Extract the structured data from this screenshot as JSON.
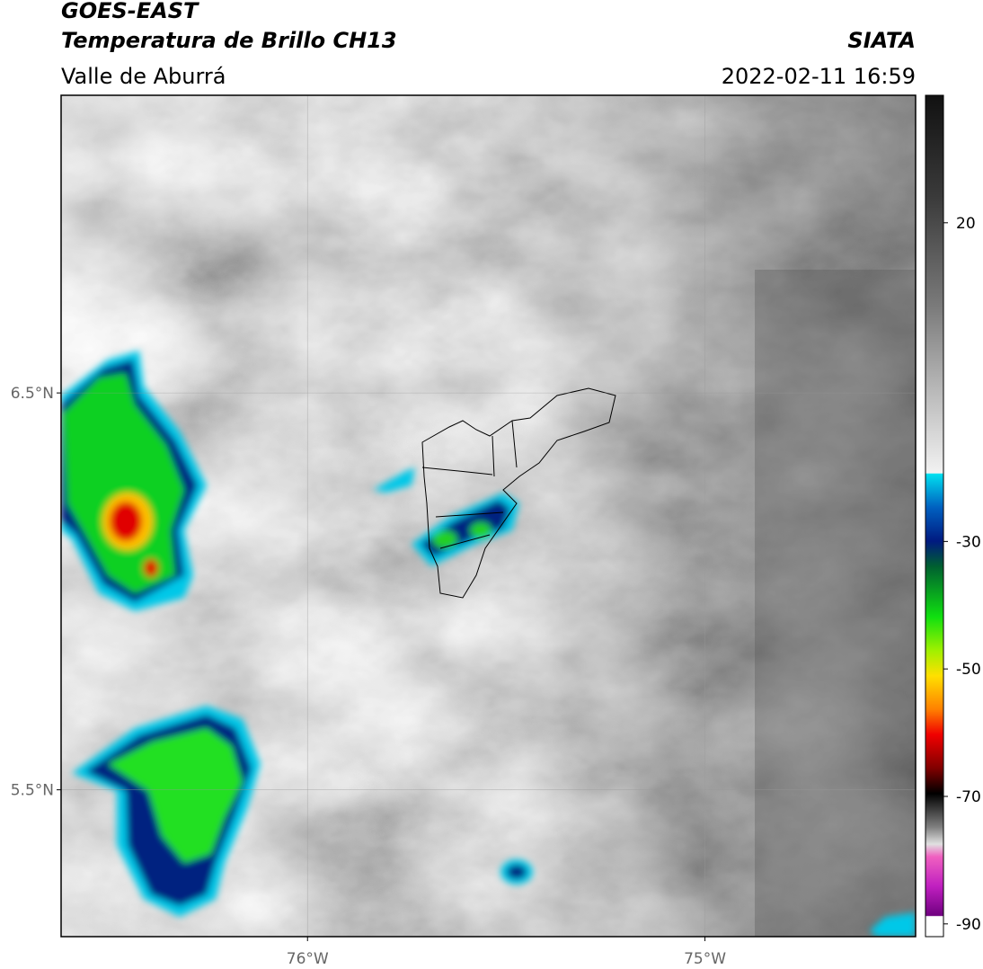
{
  "header": {
    "title": "GOES-EAST",
    "subtitle": "Temperatura de Brillo CH13",
    "source": "SIATA",
    "region": "Valle de Aburrá",
    "timestamp": "2022-02-11 16:59"
  },
  "map": {
    "lon_range": [
      -76.62,
      -74.47
    ],
    "lat_range": [
      5.13,
      7.25
    ],
    "lon_ticks": [
      {
        "value": -76,
        "label": "76°W"
      },
      {
        "value": -75,
        "label": "75°W"
      }
    ],
    "lat_ticks": [
      {
        "value": 6.5,
        "label": "6.5°N"
      },
      {
        "value": 5.5,
        "label": "5.5°N"
      }
    ]
  },
  "colorbar": {
    "range": [
      -92,
      40
    ],
    "ticks": [
      20,
      -30,
      -50,
      -70,
      -90
    ]
  }
}
